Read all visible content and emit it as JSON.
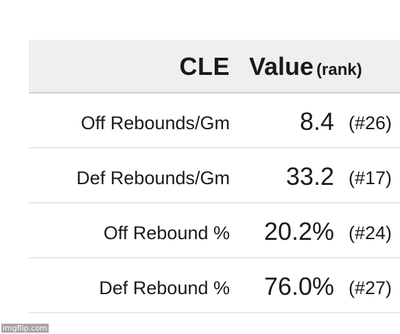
{
  "header": {
    "team": "CLE",
    "value_label": "Value",
    "rank_label": "(rank)"
  },
  "rows": [
    {
      "label": "Off Rebounds/Gm",
      "value": "8.4",
      "rank": "(#26)"
    },
    {
      "label": "Def Rebounds/Gm",
      "value": "33.2",
      "rank": "(#17)"
    },
    {
      "label": "Off Rebound %",
      "value": "20.2%",
      "rank": "(#24)"
    },
    {
      "label": "Def Rebound %",
      "value": "76.0%",
      "rank": "(#27)"
    }
  ],
  "watermark": "imgflip.com"
}
